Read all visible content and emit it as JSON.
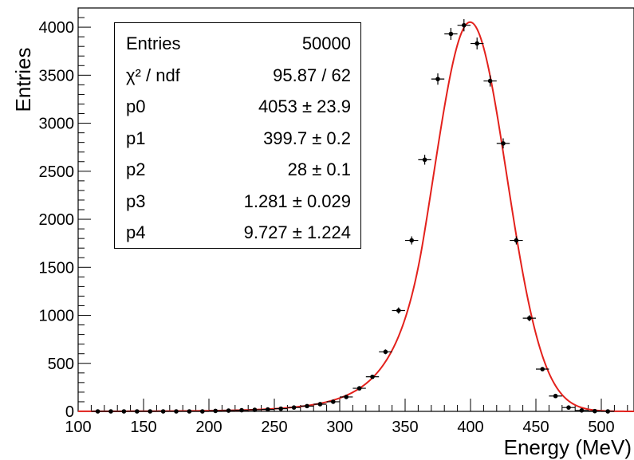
{
  "chart_data": {
    "type": "scatter",
    "xlabel": "Energy (MeV)",
    "ylabel": "Entries",
    "xlim": [
      100,
      525
    ],
    "ylim": [
      0,
      4200
    ],
    "x_ticks": [
      "100",
      "150",
      "200",
      "250",
      "300",
      "350",
      "400",
      "450",
      "500"
    ],
    "y_ticks": [
      "0",
      "500",
      "1000",
      "1500",
      "2000",
      "2500",
      "3000",
      "3500",
      "4000"
    ],
    "grid": false,
    "series": [
      {
        "kind": "data points with error bars",
        "color": "#000000",
        "x": [
          115,
          125,
          135,
          145,
          155,
          165,
          175,
          185,
          195,
          205,
          215,
          225,
          235,
          245,
          255,
          265,
          275,
          285,
          295,
          305,
          315,
          325,
          335,
          345,
          355,
          365,
          375,
          385,
          395,
          405,
          415,
          425,
          435,
          445,
          455,
          465,
          475,
          485,
          495,
          505
        ],
        "y": [
          0,
          0,
          0,
          0,
          0,
          0,
          0,
          0,
          0,
          5,
          8,
          12,
          16,
          20,
          28,
          40,
          55,
          75,
          100,
          150,
          240,
          360,
          620,
          1050,
          1780,
          2620,
          3460,
          3930,
          4020,
          3830,
          3440,
          2790,
          1780,
          970,
          440,
          160,
          40,
          10,
          3,
          0
        ]
      },
      {
        "kind": "fit curve",
        "color": "#e3211c",
        "function": "crystal ball",
        "params": [
          4053,
          399.7,
          28,
          1.281,
          9.727
        ]
      }
    ],
    "stats": {
      "legend_position": "top-left",
      "rows": [
        {
          "label": "Entries",
          "value": "50000"
        },
        {
          "label": "χ² / ndf",
          "value": "95.87 / 62"
        },
        {
          "label": "p0",
          "value": "4053 ± 23.9"
        },
        {
          "label": "p1",
          "value": "399.7 ± 0.2"
        },
        {
          "label": "p2",
          "value": "28 ± 0.1"
        },
        {
          "label": "p3",
          "value": "1.281 ± 0.029"
        },
        {
          "label": "p4",
          "value": "9.727 ± 1.224"
        }
      ]
    }
  }
}
